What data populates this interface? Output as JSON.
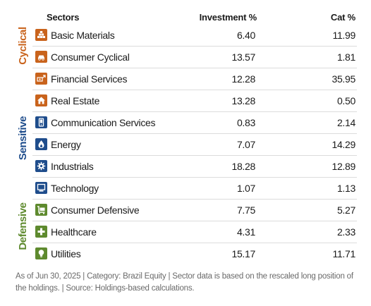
{
  "header": {
    "sectors": "Sectors",
    "investment": "Investment %",
    "cat": "Cat %"
  },
  "groups": {
    "cyclical": "Cyclical",
    "sensitive": "Sensitive",
    "defensive": "Defensive"
  },
  "colors": {
    "cyclical": "#c9631c",
    "sensitive": "#1f4d8c",
    "defensive": "#5e8a2e"
  },
  "rows": [
    {
      "name": "Basic Materials",
      "investment": "6.40",
      "cat": "11.99",
      "group": "cyclical",
      "icon": "basic-materials-icon"
    },
    {
      "name": "Consumer Cyclical",
      "investment": "13.57",
      "cat": "1.81",
      "group": "cyclical",
      "icon": "car-icon"
    },
    {
      "name": "Financial Services",
      "investment": "12.28",
      "cat": "35.95",
      "group": "cyclical",
      "icon": "money-icon"
    },
    {
      "name": "Real Estate",
      "investment": "13.28",
      "cat": "0.50",
      "group": "cyclical",
      "icon": "house-icon"
    },
    {
      "name": "Communication Services",
      "investment": "0.83",
      "cat": "2.14",
      "group": "sensitive",
      "icon": "phone-icon"
    },
    {
      "name": "Energy",
      "investment": "7.07",
      "cat": "14.29",
      "group": "sensitive",
      "icon": "flame-icon"
    },
    {
      "name": "Industrials",
      "investment": "18.28",
      "cat": "12.89",
      "group": "sensitive",
      "icon": "gear-icon"
    },
    {
      "name": "Technology",
      "investment": "1.07",
      "cat": "1.13",
      "group": "sensitive",
      "icon": "computer-icon"
    },
    {
      "name": "Consumer Defensive",
      "investment": "7.75",
      "cat": "5.27",
      "group": "defensive",
      "icon": "cart-icon"
    },
    {
      "name": "Healthcare",
      "investment": "4.31",
      "cat": "2.33",
      "group": "defensive",
      "icon": "cross-icon"
    },
    {
      "name": "Utilities",
      "investment": "15.17",
      "cat": "11.71",
      "group": "defensive",
      "icon": "bulb-icon"
    }
  ],
  "footnote": "As of Jun 30, 2025 | Category: Brazil Equity | Sector data is based on the rescaled long position of the holdings. | Source: Holdings-based calculations."
}
